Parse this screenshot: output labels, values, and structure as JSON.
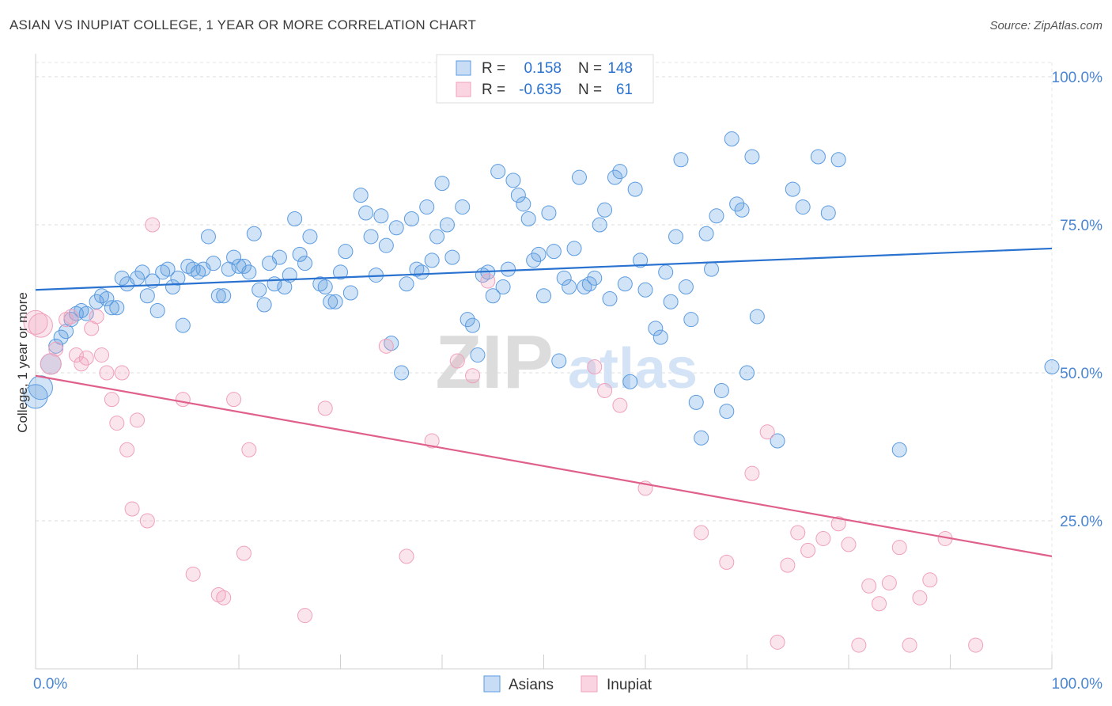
{
  "header": {
    "title": "ASIAN VS INUPIAT COLLEGE, 1 YEAR OR MORE CORRELATION CHART",
    "source": "Source: ZipAtlas.com"
  },
  "watermark": {
    "zip": "ZIP",
    "atlas": "atlas"
  },
  "chart_data": {
    "type": "scatter",
    "ylabel": "College, 1 year or more",
    "xlim": [
      0,
      100
    ],
    "ylim": [
      0,
      100
    ],
    "x_tick_labels": [
      "0.0%",
      "100.0%"
    ],
    "y_tick_labels": [
      {
        "value": 100,
        "label": "100.0%"
      },
      {
        "value": 75,
        "label": "75.0%"
      },
      {
        "value": 50,
        "label": "50.0%"
      },
      {
        "value": 25,
        "label": "25.0%"
      }
    ],
    "grid": true,
    "legend_placement": "bottom-center",
    "stats_box": [
      {
        "r_label": "R = ",
        "r_value": "0.158",
        "n_label": "N = ",
        "n_value": "148",
        "color": "#5b9be0"
      },
      {
        "r_label": "R = ",
        "r_value": "-0.635",
        "n_label": "N = ",
        "n_value": "61",
        "color": "#f0a0bc"
      }
    ],
    "series": [
      {
        "name": "Asians",
        "color": "#5b9be0",
        "line_color": "#2a72d0",
        "trend": [
          [
            0,
            64.0
          ],
          [
            100,
            71.0
          ]
        ],
        "points": [
          [
            0,
            46
          ],
          [
            0.5,
            47.5
          ],
          [
            1.5,
            51.5
          ],
          [
            2,
            54.5
          ],
          [
            2.5,
            56
          ],
          [
            3,
            57
          ],
          [
            3.5,
            59
          ],
          [
            4,
            60
          ],
          [
            4.5,
            60.5
          ],
          [
            5,
            60
          ],
          [
            6,
            62
          ],
          [
            6.5,
            63
          ],
          [
            7,
            62.5
          ],
          [
            7.5,
            61
          ],
          [
            8,
            61
          ],
          [
            8.5,
            66
          ],
          [
            9,
            65
          ],
          [
            10,
            66
          ],
          [
            10.5,
            67
          ],
          [
            11,
            63
          ],
          [
            11.5,
            65.5
          ],
          [
            12,
            60.5
          ],
          [
            12.5,
            67
          ],
          [
            13,
            67.5
          ],
          [
            13.5,
            64.5
          ],
          [
            14,
            66
          ],
          [
            14.5,
            58
          ],
          [
            15,
            68
          ],
          [
            15.5,
            67.5
          ],
          [
            16,
            67
          ],
          [
            16.5,
            67.5
          ],
          [
            17,
            73
          ],
          [
            17.5,
            68.5
          ],
          [
            18,
            63
          ],
          [
            18.5,
            63
          ],
          [
            19,
            67.5
          ],
          [
            19.5,
            69.5
          ],
          [
            20,
            68
          ],
          [
            20.5,
            68
          ],
          [
            21,
            67
          ],
          [
            21.5,
            73.5
          ],
          [
            22,
            64
          ],
          [
            22.5,
            61.5
          ],
          [
            23,
            68.5
          ],
          [
            23.5,
            65
          ],
          [
            24,
            69.5
          ],
          [
            24.5,
            64.5
          ],
          [
            25,
            66.5
          ],
          [
            25.5,
            76
          ],
          [
            26,
            70
          ],
          [
            26.5,
            68.5
          ],
          [
            27,
            73
          ],
          [
            28,
            65
          ],
          [
            28.5,
            64.5
          ],
          [
            29,
            62
          ],
          [
            29.5,
            62
          ],
          [
            30,
            67
          ],
          [
            30.5,
            70.5
          ],
          [
            31,
            63.5
          ],
          [
            32,
            80
          ],
          [
            32.5,
            77
          ],
          [
            33,
            73
          ],
          [
            33.5,
            66.5
          ],
          [
            34,
            76.5
          ],
          [
            34.5,
            71.5
          ],
          [
            35,
            55
          ],
          [
            35.5,
            74.5
          ],
          [
            36,
            50
          ],
          [
            36.5,
            65
          ],
          [
            37,
            76
          ],
          [
            37.5,
            67.5
          ],
          [
            38,
            67
          ],
          [
            38.5,
            78
          ],
          [
            39,
            69
          ],
          [
            39.5,
            73
          ],
          [
            40,
            82
          ],
          [
            40.5,
            75
          ],
          [
            41,
            69.5
          ],
          [
            42,
            78
          ],
          [
            42.5,
            59
          ],
          [
            43,
            58
          ],
          [
            43.5,
            53
          ],
          [
            44,
            66.5
          ],
          [
            44.5,
            67
          ],
          [
            45,
            63
          ],
          [
            45.5,
            84
          ],
          [
            46,
            64.5
          ],
          [
            46.5,
            67.5
          ],
          [
            47,
            82.5
          ],
          [
            47.5,
            80
          ],
          [
            48,
            78.5
          ],
          [
            48.5,
            76
          ],
          [
            49,
            69
          ],
          [
            49.5,
            70
          ],
          [
            50,
            63
          ],
          [
            50.5,
            77
          ],
          [
            51,
            70.5
          ],
          [
            51.5,
            52
          ],
          [
            52,
            66
          ],
          [
            52.5,
            64.5
          ],
          [
            53,
            71
          ],
          [
            53.5,
            83
          ],
          [
            54,
            64.5
          ],
          [
            54.5,
            65
          ],
          [
            55,
            66
          ],
          [
            55.5,
            75
          ],
          [
            56,
            77.5
          ],
          [
            56.5,
            62.5
          ],
          [
            57,
            83
          ],
          [
            57.5,
            84
          ],
          [
            58,
            65
          ],
          [
            58.5,
            48.5
          ],
          [
            59,
            81
          ],
          [
            59.5,
            69
          ],
          [
            60,
            64
          ],
          [
            61,
            57.5
          ],
          [
            61.5,
            56
          ],
          [
            62,
            67
          ],
          [
            62.5,
            62
          ],
          [
            63,
            73
          ],
          [
            63.5,
            86
          ],
          [
            64,
            64.5
          ],
          [
            64.5,
            59
          ],
          [
            65,
            45
          ],
          [
            65.5,
            39
          ],
          [
            66,
            73.5
          ],
          [
            66.5,
            67.5
          ],
          [
            67,
            76.5
          ],
          [
            67.5,
            47
          ],
          [
            68,
            43.5
          ],
          [
            68.5,
            89.5
          ],
          [
            69,
            78.5
          ],
          [
            69.5,
            77.5
          ],
          [
            70,
            50
          ],
          [
            70.5,
            86.5
          ],
          [
            71,
            59.5
          ],
          [
            73,
            38.5
          ],
          [
            74.5,
            81
          ],
          [
            75.5,
            78
          ],
          [
            77,
            86.5
          ],
          [
            78,
            77
          ],
          [
            79,
            86
          ],
          [
            85,
            37
          ],
          [
            100,
            51
          ]
        ]
      },
      {
        "name": "Inupiat",
        "color": "#f0a0bc",
        "line_color": "#e0608c",
        "trend": [
          [
            0,
            49.5
          ],
          [
            100,
            19.0
          ]
        ],
        "points": [
          [
            0,
            58.5
          ],
          [
            0.5,
            58
          ],
          [
            1.5,
            51.5
          ],
          [
            2,
            54
          ],
          [
            3,
            59
          ],
          [
            3.5,
            59.5
          ],
          [
            4,
            53
          ],
          [
            4.5,
            51.5
          ],
          [
            5,
            52.5
          ],
          [
            5.5,
            57.5
          ],
          [
            6,
            59.5
          ],
          [
            6.5,
            53
          ],
          [
            7,
            50
          ],
          [
            7.5,
            45.5
          ],
          [
            8,
            41.5
          ],
          [
            8.5,
            50
          ],
          [
            9,
            37
          ],
          [
            9.5,
            27
          ],
          [
            10,
            42
          ],
          [
            11,
            25
          ],
          [
            11.5,
            75
          ],
          [
            14.5,
            45.5
          ],
          [
            15.5,
            16
          ],
          [
            18,
            12.5
          ],
          [
            18.5,
            12
          ],
          [
            19.5,
            45.5
          ],
          [
            20.5,
            19.5
          ],
          [
            21,
            37
          ],
          [
            26.5,
            9
          ],
          [
            28.5,
            44
          ],
          [
            34.5,
            54.5
          ],
          [
            36.5,
            19
          ],
          [
            39,
            38.5
          ],
          [
            41.5,
            52
          ],
          [
            43,
            49.5
          ],
          [
            44.5,
            65.5
          ],
          [
            55,
            51
          ],
          [
            56,
            47
          ],
          [
            57.5,
            44.5
          ],
          [
            60,
            30.5
          ],
          [
            65.5,
            23
          ],
          [
            68,
            18
          ],
          [
            70.5,
            33
          ],
          [
            72,
            40
          ],
          [
            73,
            4.5
          ],
          [
            74,
            17.5
          ],
          [
            75,
            23
          ],
          [
            76,
            20
          ],
          [
            77.5,
            22
          ],
          [
            79,
            24.5
          ],
          [
            80,
            21
          ],
          [
            81,
            4
          ],
          [
            82,
            14
          ],
          [
            83,
            11
          ],
          [
            84,
            14.5
          ],
          [
            85,
            20.5
          ],
          [
            86,
            4
          ],
          [
            87,
            12
          ],
          [
            88,
            15
          ],
          [
            89.5,
            22
          ],
          [
            92.5,
            4
          ]
        ]
      }
    ]
  }
}
